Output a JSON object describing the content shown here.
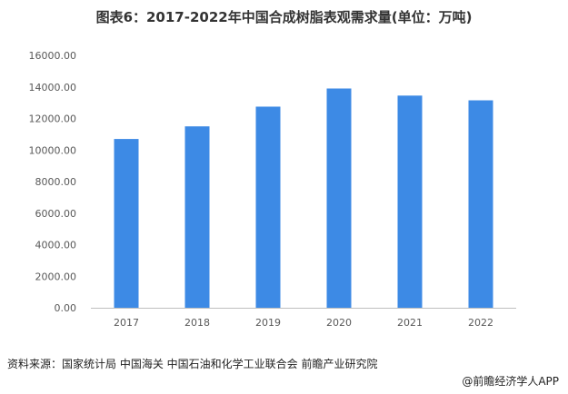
{
  "chart_data": {
    "type": "bar",
    "title": "图表6：2017-2022年中国合成树脂表观需求量(单位：万吨)",
    "categories": [
      "2017",
      "2018",
      "2019",
      "2020",
      "2021",
      "2022"
    ],
    "values": [
      10700,
      11500,
      12750,
      13900,
      13450,
      13150
    ],
    "yticks": [
      "0.00",
      "2000.00",
      "4000.00",
      "6000.00",
      "8000.00",
      "10000.00",
      "12000.00",
      "14000.00",
      "16000.00"
    ],
    "ylim": [
      0,
      16000
    ],
    "grid": false,
    "bar_color": "#3d8ae5"
  },
  "footer": {
    "source": "资料来源：国家统计局 中国海关 中国石油和化学工业联合会 前瞻产业研究院",
    "brand": "@前瞻经济学人APP"
  }
}
